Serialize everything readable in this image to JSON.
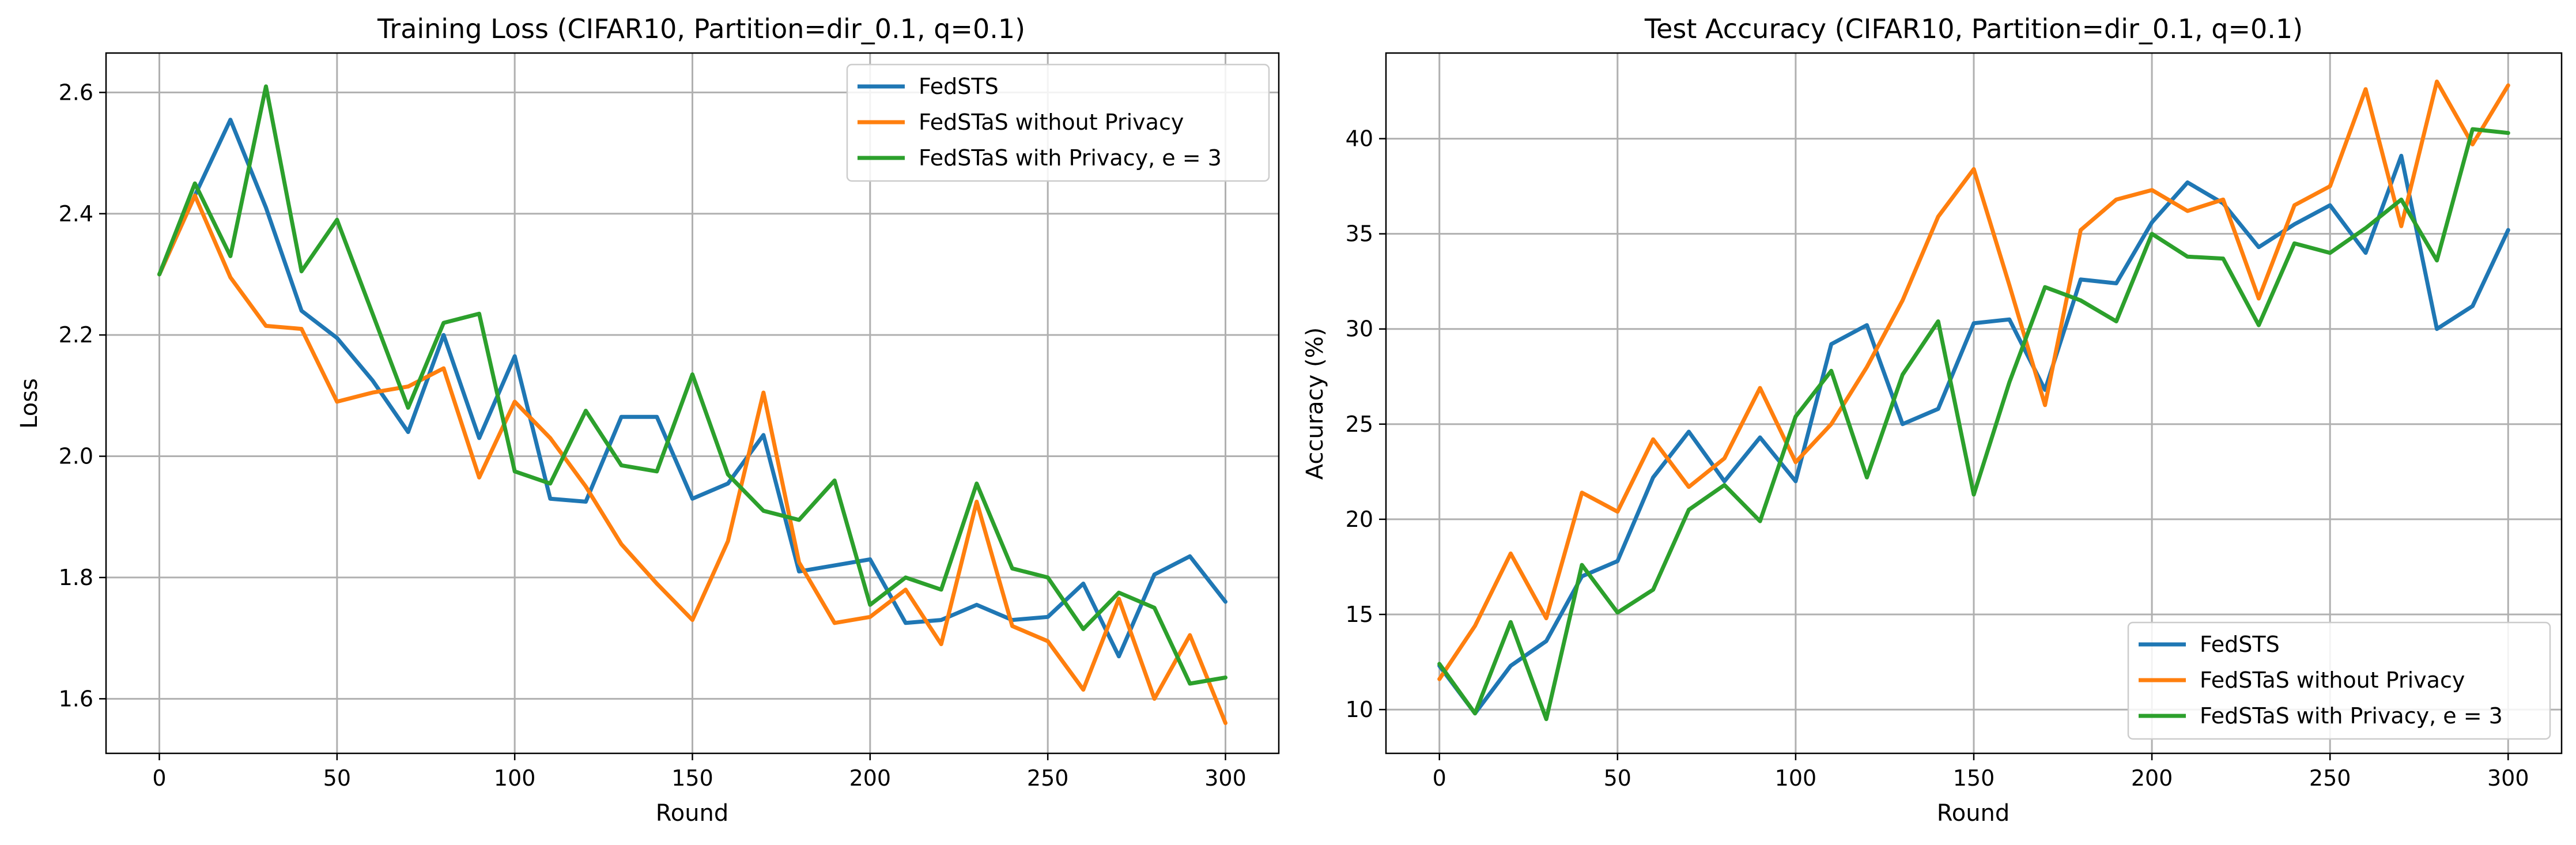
{
  "chart_data": [
    {
      "type": "line",
      "title": "Training Loss (CIFAR10, Partition=dir_0.1, q=0.1)",
      "xlabel": "Round",
      "ylabel": "Loss",
      "x": [
        0,
        10,
        20,
        30,
        40,
        50,
        60,
        70,
        80,
        90,
        100,
        110,
        120,
        130,
        140,
        150,
        160,
        170,
        180,
        190,
        200,
        210,
        220,
        230,
        240,
        250,
        260,
        270,
        280,
        290,
        300
      ],
      "xticks": [
        0,
        50,
        100,
        150,
        200,
        250,
        300
      ],
      "yticks": [
        1.6,
        1.8,
        2.0,
        2.2,
        2.4,
        2.6
      ],
      "ytick_labels": [
        "1.6",
        "1.8",
        "2.0",
        "2.2",
        "2.4",
        "2.6"
      ],
      "xlim": [
        -15,
        315
      ],
      "ylim": [
        1.51,
        2.665
      ],
      "grid": true,
      "legend_loc": "upper right",
      "series": [
        {
          "name": "FedSTS",
          "color": "#1f77b4",
          "values": [
            2.3,
            2.43,
            2.555,
            2.41,
            2.24,
            2.195,
            2.125,
            2.04,
            2.2,
            2.03,
            2.165,
            1.93,
            1.925,
            2.065,
            2.065,
            1.93,
            1.955,
            2.035,
            1.81,
            1.82,
            1.83,
            1.725,
            1.73,
            1.755,
            1.73,
            1.735,
            1.79,
            1.67,
            1.805,
            1.835,
            1.76
          ]
        },
        {
          "name": "FedSTaS without Privacy",
          "color": "#ff7f0e",
          "values": [
            2.3,
            2.43,
            2.295,
            2.215,
            2.21,
            2.09,
            2.105,
            2.115,
            2.145,
            1.965,
            2.09,
            2.03,
            1.95,
            1.855,
            1.79,
            1.73,
            1.86,
            2.105,
            1.825,
            1.725,
            1.735,
            1.78,
            1.69,
            1.925,
            1.72,
            1.695,
            1.615,
            1.765,
            1.6,
            1.705,
            1.56
          ]
        },
        {
          "name": "FedSTaS with Privacy, e = 3",
          "color": "#2ca02c",
          "values": [
            2.3,
            2.45,
            2.33,
            2.61,
            2.305,
            2.39,
            2.235,
            2.08,
            2.22,
            2.235,
            1.975,
            1.955,
            2.075,
            1.985,
            1.975,
            2.135,
            1.97,
            1.91,
            1.895,
            1.96,
            1.755,
            1.8,
            1.78,
            1.955,
            1.815,
            1.8,
            1.715,
            1.775,
            1.75,
            1.625,
            1.635
          ]
        }
      ]
    },
    {
      "type": "line",
      "title": "Test Accuracy (CIFAR10, Partition=dir_0.1, q=0.1)",
      "xlabel": "Round",
      "ylabel": "Accuracy (%)",
      "x": [
        0,
        10,
        20,
        30,
        40,
        50,
        60,
        70,
        80,
        90,
        100,
        110,
        120,
        130,
        140,
        150,
        160,
        170,
        180,
        190,
        200,
        210,
        220,
        230,
        240,
        250,
        260,
        270,
        280,
        290,
        300
      ],
      "xticks": [
        0,
        50,
        100,
        150,
        200,
        250,
        300
      ],
      "yticks": [
        10,
        15,
        20,
        25,
        30,
        35,
        40
      ],
      "ytick_labels": [
        "10",
        "15",
        "20",
        "25",
        "30",
        "35",
        "40"
      ],
      "xlim": [
        -15,
        315
      ],
      "ylim": [
        7.7,
        44.5
      ],
      "grid": true,
      "legend_loc": "lower right",
      "series": [
        {
          "name": "FedSTS",
          "color": "#1f77b4",
          "values": [
            12.3,
            9.8,
            12.3,
            13.6,
            17.0,
            17.8,
            22.2,
            24.6,
            22.0,
            24.3,
            22.0,
            29.2,
            30.2,
            25.0,
            25.8,
            30.3,
            30.5,
            26.8,
            32.6,
            32.4,
            35.6,
            37.7,
            36.6,
            34.3,
            35.5,
            36.5,
            34.0,
            39.1,
            30.0,
            31.2,
            35.2
          ]
        },
        {
          "name": "FedSTaS without Privacy",
          "color": "#ff7f0e",
          "values": [
            11.6,
            14.4,
            18.2,
            14.8,
            21.4,
            20.4,
            24.2,
            21.7,
            23.2,
            26.9,
            23.0,
            25.0,
            28.0,
            31.5,
            35.9,
            38.4,
            32.3,
            26.0,
            35.2,
            36.8,
            37.3,
            36.2,
            36.8,
            31.6,
            36.5,
            37.5,
            42.6,
            35.4,
            43.0,
            39.7,
            42.8
          ]
        },
        {
          "name": "FedSTaS with Privacy, e = 3",
          "color": "#2ca02c",
          "values": [
            12.4,
            9.8,
            14.6,
            9.5,
            17.6,
            15.1,
            16.3,
            20.5,
            21.8,
            19.9,
            25.4,
            27.8,
            22.2,
            27.6,
            30.4,
            21.3,
            27.2,
            32.2,
            31.5,
            30.4,
            35.0,
            33.8,
            33.7,
            30.2,
            34.5,
            34.0,
            35.3,
            36.8,
            33.6,
            40.5,
            40.3
          ]
        }
      ]
    }
  ]
}
